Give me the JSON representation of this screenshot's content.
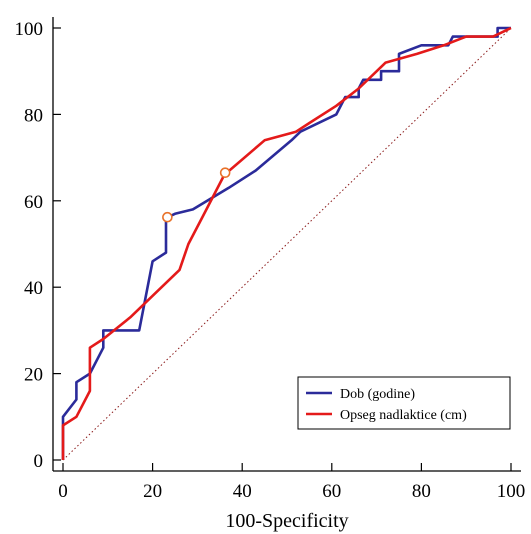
{
  "chart_data": {
    "type": "line",
    "xlabel": "100-Specificity",
    "ylabel": "",
    "xlim": [
      0,
      100
    ],
    "ylim": [
      0,
      100
    ],
    "x_ticks": [
      0,
      20,
      40,
      60,
      80,
      100
    ],
    "y_ticks": [
      0,
      20,
      40,
      60,
      80,
      100
    ],
    "legend_position": "bottom-right",
    "series": [
      {
        "name": "Dob (godine)",
        "color": "#2b2b9a",
        "points": [
          [
            0,
            0
          ],
          [
            0,
            10
          ],
          [
            3,
            14
          ],
          [
            3,
            18
          ],
          [
            6,
            20
          ],
          [
            9,
            26
          ],
          [
            9,
            30
          ],
          [
            17,
            30
          ],
          [
            20,
            46
          ],
          [
            23,
            48
          ],
          [
            23,
            56
          ],
          [
            25,
            57
          ],
          [
            29,
            58
          ],
          [
            37,
            63
          ],
          [
            43,
            67
          ],
          [
            51,
            74
          ],
          [
            53,
            76
          ],
          [
            61,
            80
          ],
          [
            63,
            84
          ],
          [
            66,
            84
          ],
          [
            66,
            86
          ],
          [
            67,
            88
          ],
          [
            71,
            88
          ],
          [
            71,
            90
          ],
          [
            75,
            90
          ],
          [
            75,
            94
          ],
          [
            80,
            96
          ],
          [
            86,
            96
          ],
          [
            87,
            98
          ],
          [
            97,
            98
          ],
          [
            97,
            100
          ],
          [
            100,
            100
          ]
        ]
      },
      {
        "name": "Opseg nadlaktice (cm)",
        "color": "#e41a1a",
        "points": [
          [
            0,
            0
          ],
          [
            0,
            8
          ],
          [
            3,
            10
          ],
          [
            6,
            16
          ],
          [
            6,
            26
          ],
          [
            9,
            28
          ],
          [
            15,
            33
          ],
          [
            20,
            38
          ],
          [
            26,
            44
          ],
          [
            28,
            50
          ],
          [
            31,
            56
          ],
          [
            36,
            66
          ],
          [
            45,
            74
          ],
          [
            52,
            76
          ],
          [
            55,
            78
          ],
          [
            61,
            82
          ],
          [
            66,
            86
          ],
          [
            72,
            92
          ],
          [
            79,
            94
          ],
          [
            85,
            96
          ],
          [
            90,
            98
          ],
          [
            96,
            98
          ],
          [
            100,
            100
          ]
        ]
      }
    ],
    "reference_line": {
      "from": [
        0,
        0
      ],
      "to": [
        100,
        100
      ],
      "style": "dotted",
      "color": "#8b1a1a"
    },
    "markers": [
      {
        "series": "Dob (godine)",
        "x": 23.3,
        "y": 56.2,
        "color": "#e8722a"
      },
      {
        "series": "Opseg nadlaktice (cm)",
        "x": 36.2,
        "y": 66.5,
        "color": "#e8722a"
      }
    ]
  }
}
